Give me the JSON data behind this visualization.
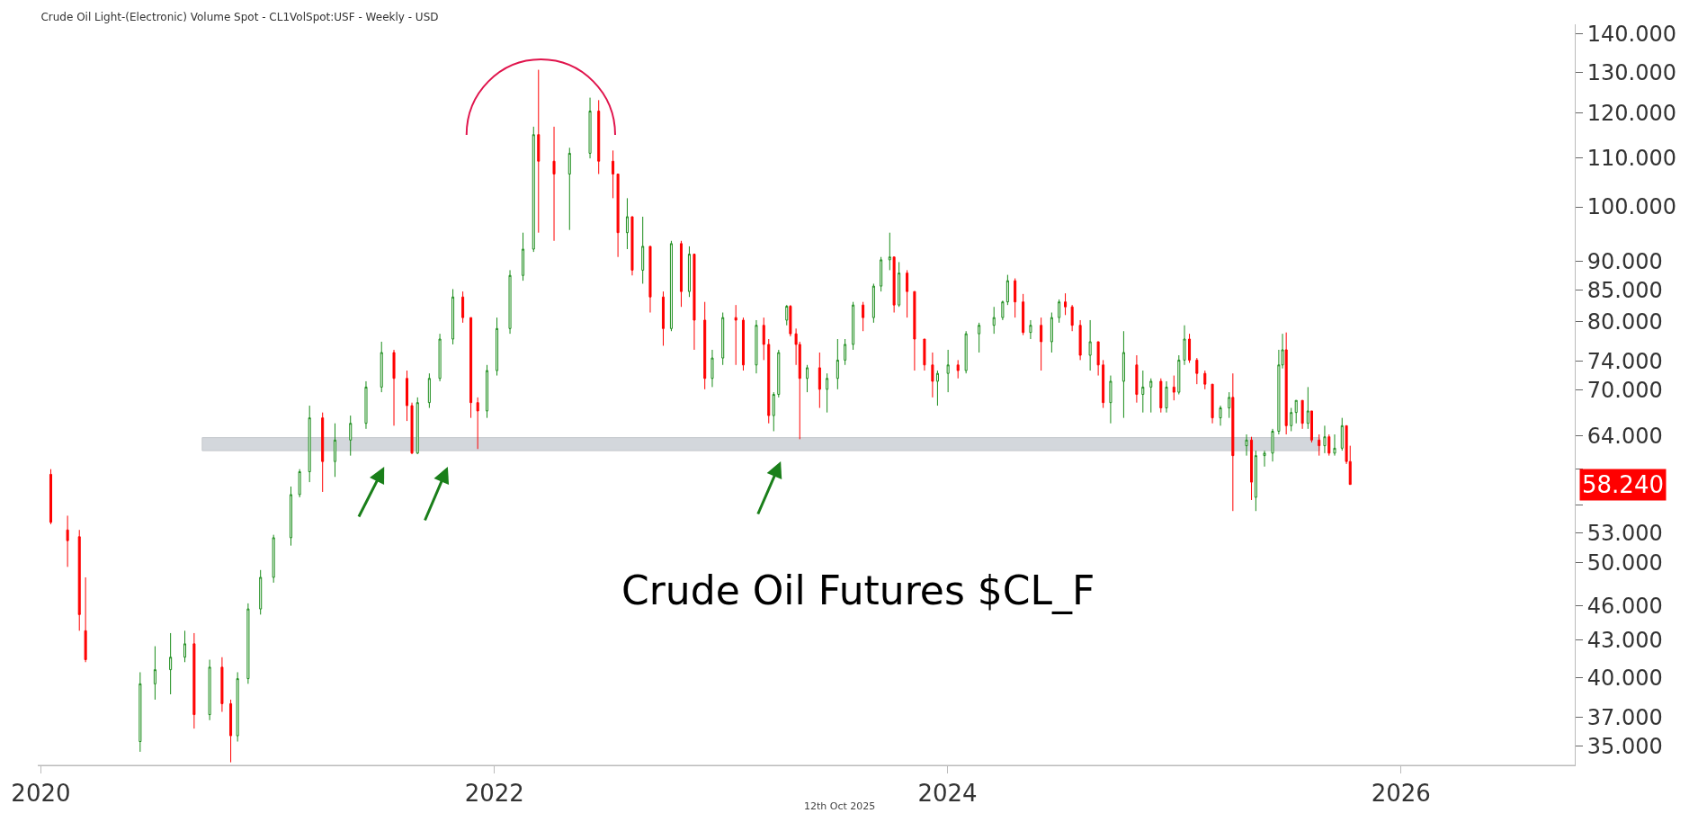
{
  "chart_data": {
    "type": "candlestick",
    "title": "Crude Oil Light-(Electronic) Volume Spot - CL1VolSpot:USF - Weekly - USD",
    "x": [
      "2020-01-17",
      "2020-02-13",
      "2020-03-03",
      "2020-03-13",
      "2020-06-09",
      "2020-07-03",
      "2020-07-28",
      "2020-08-20",
      "2020-09-04",
      "2020-09-29",
      "2020-10-19",
      "2020-11-02",
      "2020-11-13",
      "2020-11-30",
      "2020-12-20",
      "2021-01-10",
      "2021-02-07",
      "2021-02-21",
      "2021-03-09",
      "2021-03-30",
      "2021-04-19",
      "2021-05-14",
      "2021-06-08",
      "2021-07-03",
      "2021-07-23",
      "2021-08-13",
      "2021-08-21",
      "2021-08-30",
      "2021-09-18",
      "2021-10-05",
      "2021-10-26",
      "2021-11-11",
      "2021-11-24",
      "2021-12-05",
      "2021-12-20",
      "2022-01-05",
      "2022-01-26",
      "2022-02-16",
      "2022-03-05",
      "2022-03-13",
      "2022-04-07",
      "2022-05-02",
      "2022-06-04",
      "2022-06-18",
      "2022-07-11",
      "2022-07-19",
      "2022-08-03",
      "2022-08-11",
      "2022-08-28",
      "2022-09-09",
      "2022-09-30",
      "2022-10-13",
      "2022-10-29",
      "2022-11-11",
      "2022-11-19",
      "2022-12-06",
      "2022-12-18",
      "2023-01-04",
      "2023-01-25",
      "2023-02-06",
      "2023-02-27",
      "2023-03-11",
      "2023-03-19",
      "2023-03-27",
      "2023-04-04",
      "2023-04-17",
      "2023-04-23",
      "2023-05-02",
      "2023-05-08",
      "2023-05-20",
      "2023-06-09",
      "2023-06-21",
      "2023-07-08",
      "2023-07-20",
      "2023-08-02",
      "2023-08-18",
      "2023-09-04",
      "2023-09-16",
      "2023-09-30",
      "2023-10-07",
      "2023-10-15",
      "2023-10-28",
      "2023-11-09",
      "2023-11-25",
      "2023-12-08",
      "2023-12-16",
      "2024-01-02",
      "2024-01-18",
      "2024-01-31",
      "2024-02-21",
      "2024-03-16",
      "2024-03-30",
      "2024-04-07",
      "2024-04-19",
      "2024-05-02",
      "2024-05-14",
      "2024-05-31",
      "2024-06-17",
      "2024-06-29",
      "2024-07-09",
      "2024-07-20",
      "2024-08-02",
      "2024-08-18",
      "2024-08-31",
      "2024-09-08",
      "2024-09-20",
      "2024-10-11",
      "2024-11-01",
      "2024-11-11",
      "2024-11-24",
      "2024-12-10",
      "2024-12-19",
      "2024-12-31",
      "2025-01-08",
      "2025-01-17",
      "2025-01-25",
      "2025-02-06",
      "2025-02-19",
      "2025-03-03",
      "2025-03-16",
      "2025-03-30",
      "2025-04-05",
      "2025-04-27",
      "2025-05-05",
      "2025-05-12",
      "2025-05-26",
      "2025-06-08",
      "2025-06-18",
      "2025-06-24",
      "2025-06-30",
      "2025-07-08",
      "2025-07-16",
      "2025-07-26",
      "2025-08-04",
      "2025-08-10",
      "2025-08-22",
      "2025-08-31",
      "2025-09-07",
      "2025-09-16",
      "2025-09-28",
      "2025-10-05",
      "2025-10-11"
    ],
    "ohlc": [
      [
        59.4,
        60.0,
        53.9,
        54.1
      ],
      [
        53.3,
        54.8,
        49.6,
        52.2
      ],
      [
        52.6,
        53.3,
        43.8,
        45.2
      ],
      [
        43.8,
        48.6,
        41.2,
        41.4
      ],
      [
        35.3,
        40.4,
        34.6,
        39.5
      ],
      [
        39.5,
        42.5,
        38.3,
        40.6
      ],
      [
        40.6,
        43.6,
        38.7,
        41.6
      ],
      [
        41.6,
        43.8,
        41.2,
        42.7
      ],
      [
        42.7,
        43.6,
        36.2,
        37.2
      ],
      [
        37.2,
        41.4,
        36.8,
        40.8
      ],
      [
        40.8,
        41.6,
        37.4,
        38.0
      ],
      [
        38.0,
        38.3,
        33.9,
        35.7
      ],
      [
        35.7,
        40.4,
        35.3,
        39.9
      ],
      [
        39.9,
        46.2,
        39.5,
        45.7
      ],
      [
        45.7,
        49.3,
        45.2,
        48.6
      ],
      [
        48.6,
        52.8,
        48.1,
        52.5
      ],
      [
        52.5,
        58.0,
        51.7,
        57.1
      ],
      [
        57.1,
        60.0,
        56.8,
        59.7
      ],
      [
        59.7,
        67.9,
        58.5,
        66.3
      ],
      [
        66.3,
        67.0,
        57.4,
        60.9
      ],
      [
        60.9,
        65.6,
        59.1,
        63.5
      ],
      [
        63.5,
        66.6,
        61.6,
        65.6
      ],
      [
        65.6,
        71.2,
        64.9,
        70.4
      ],
      [
        70.4,
        76.9,
        69.7,
        75.3
      ],
      [
        75.3,
        75.7,
        65.3,
        71.6
      ],
      [
        71.6,
        72.7,
        65.9,
        67.9
      ],
      [
        67.9,
        68.3,
        61.8,
        61.9
      ],
      [
        61.9,
        69.0,
        61.8,
        68.3
      ],
      [
        68.3,
        72.3,
        67.6,
        71.6
      ],
      [
        71.6,
        78.1,
        71.2,
        77.3
      ],
      [
        77.3,
        85.2,
        76.5,
        83.9
      ],
      [
        83.9,
        84.8,
        79.8,
        80.6
      ],
      [
        80.6,
        80.6,
        66.3,
        68.3
      ],
      [
        68.3,
        69.0,
        62.4,
        67.2
      ],
      [
        67.2,
        73.5,
        66.3,
        72.7
      ],
      [
        72.7,
        80.6,
        72.0,
        78.9
      ],
      [
        78.9,
        88.4,
        78.1,
        87.5
      ],
      [
        87.5,
        95.1,
        86.6,
        92.1
      ],
      [
        92.1,
        116.9,
        91.6,
        115.1
      ],
      [
        115.1,
        130.6,
        95.1,
        109.3
      ],
      [
        109.3,
        116.9,
        93.6,
        106.6
      ],
      [
        106.6,
        112.2,
        95.6,
        111.0
      ],
      [
        111.0,
        123.7,
        109.9,
        120.5
      ],
      [
        120.5,
        123.1,
        106.6,
        109.3
      ],
      [
        109.3,
        111.6,
        101.7,
        106.6
      ],
      [
        106.6,
        106.6,
        90.7,
        95.1
      ],
      [
        95.1,
        101.7,
        92.1,
        98.1
      ],
      [
        98.1,
        98.1,
        87.5,
        88.4
      ],
      [
        88.4,
        98.1,
        86.1,
        92.6
      ],
      [
        92.6,
        92.6,
        81.4,
        83.9
      ],
      [
        83.9,
        84.8,
        76.3,
        78.9
      ],
      [
        78.9,
        93.6,
        78.5,
        93.1
      ],
      [
        93.1,
        93.6,
        82.3,
        84.8
      ],
      [
        84.8,
        92.6,
        83.9,
        91.2
      ],
      [
        91.2,
        91.2,
        75.7,
        80.2
      ],
      [
        80.2,
        83.1,
        70.1,
        71.6
      ],
      [
        71.6,
        75.7,
        70.4,
        74.5
      ],
      [
        74.5,
        81.4,
        73.5,
        80.6
      ],
      [
        80.6,
        82.6,
        73.5,
        80.2
      ],
      [
        80.2,
        80.6,
        72.7,
        73.5
      ],
      [
        73.5,
        80.2,
        72.3,
        79.4
      ],
      [
        79.4,
        80.6,
        74.2,
        76.5
      ],
      [
        76.5,
        77.3,
        65.6,
        66.6
      ],
      [
        66.6,
        69.7,
        64.6,
        69.4
      ],
      [
        69.4,
        75.7,
        69.0,
        75.3
      ],
      [
        80.2,
        82.6,
        79.4,
        82.4
      ],
      [
        82.4,
        82.6,
        77.7,
        78.1
      ],
      [
        78.1,
        78.9,
        73.5,
        76.5
      ],
      [
        76.5,
        76.9,
        63.6,
        71.6
      ],
      [
        71.6,
        73.5,
        69.7,
        73.1
      ],
      [
        73.1,
        75.3,
        67.6,
        70.1
      ],
      [
        70.1,
        72.3,
        67.0,
        71.6
      ],
      [
        71.6,
        77.3,
        70.1,
        74.2
      ],
      [
        74.2,
        77.3,
        73.5,
        76.5
      ],
      [
        76.5,
        83.1,
        75.7,
        82.6
      ],
      [
        82.6,
        83.1,
        78.5,
        80.6
      ],
      [
        80.6,
        86.1,
        79.8,
        85.7
      ],
      [
        85.7,
        90.7,
        84.8,
        90.2
      ],
      [
        90.2,
        95.1,
        88.4,
        90.7
      ],
      [
        90.7,
        90.7,
        81.4,
        82.6
      ],
      [
        82.6,
        89.8,
        82.3,
        87.9
      ],
      [
        87.9,
        88.4,
        80.6,
        84.8
      ],
      [
        84.8,
        84.8,
        72.7,
        77.3
      ],
      [
        77.3,
        77.3,
        72.7,
        73.5
      ],
      [
        73.5,
        75.3,
        69.0,
        71.2
      ],
      [
        71.2,
        72.7,
        67.9,
        72.3
      ],
      [
        72.3,
        75.7,
        69.7,
        73.5
      ],
      [
        73.5,
        74.2,
        71.6,
        72.7
      ],
      [
        72.7,
        78.5,
        72.3,
        78.1
      ],
      [
        78.1,
        79.8,
        75.3,
        79.4
      ],
      [
        79.4,
        82.3,
        78.1,
        80.6
      ],
      [
        80.6,
        83.3,
        80.2,
        83.1
      ],
      [
        83.1,
        87.6,
        82.6,
        86.6
      ],
      [
        86.6,
        87.0,
        80.6,
        83.1
      ],
      [
        83.1,
        84.4,
        77.9,
        78.3
      ],
      [
        78.3,
        80.2,
        77.3,
        79.4
      ],
      [
        79.4,
        80.6,
        72.7,
        76.9
      ],
      [
        76.9,
        81.4,
        75.3,
        80.6
      ],
      [
        80.6,
        83.5,
        79.8,
        83.1
      ],
      [
        83.1,
        84.5,
        81.0,
        82.3
      ],
      [
        82.3,
        82.6,
        78.5,
        79.4
      ],
      [
        79.4,
        80.2,
        74.2,
        74.9
      ],
      [
        74.9,
        80.2,
        72.7,
        76.9
      ],
      [
        76.9,
        76.9,
        72.0,
        73.5
      ],
      [
        73.5,
        74.2,
        67.6,
        68.3
      ],
      [
        68.3,
        72.0,
        65.6,
        71.2
      ],
      [
        71.2,
        78.5,
        66.3,
        75.3
      ],
      [
        73.5,
        74.9,
        68.3,
        69.4
      ],
      [
        69.4,
        72.7,
        67.0,
        70.4
      ],
      [
        70.4,
        71.6,
        67.0,
        71.2
      ],
      [
        71.2,
        71.6,
        67.0,
        67.6
      ],
      [
        67.6,
        71.2,
        67.0,
        70.4
      ],
      [
        70.4,
        72.0,
        68.6,
        69.7
      ],
      [
        69.7,
        74.9,
        69.4,
        74.2
      ],
      [
        74.2,
        79.4,
        73.5,
        77.3
      ],
      [
        77.3,
        78.1,
        73.8,
        74.2
      ],
      [
        74.2,
        74.5,
        70.8,
        72.3
      ],
      [
        72.3,
        72.7,
        70.1,
        70.8
      ],
      [
        70.8,
        70.8,
        65.6,
        66.3
      ],
      [
        66.3,
        67.9,
        65.3,
        67.6
      ],
      [
        67.6,
        69.7,
        66.3,
        69.0
      ],
      [
        69.0,
        72.3,
        55.3,
        61.6
      ],
      [
        62.8,
        64.2,
        61.6,
        63.5
      ],
      [
        63.5,
        63.9,
        56.5,
        58.5
      ],
      [
        56.8,
        62.2,
        55.3,
        61.6
      ],
      [
        61.6,
        62.2,
        60.3,
        61.9
      ],
      [
        61.9,
        64.9,
        60.9,
        64.6
      ],
      [
        64.6,
        75.7,
        64.2,
        73.5
      ],
      [
        73.5,
        78.1,
        73.0,
        75.7
      ],
      [
        75.7,
        78.3,
        64.2,
        65.3
      ],
      [
        65.3,
        67.6,
        64.6,
        67.0
      ],
      [
        67.0,
        68.6,
        65.6,
        68.6
      ],
      [
        68.6,
        68.6,
        64.9,
        65.6
      ],
      [
        65.6,
        70.4,
        64.9,
        67.2
      ],
      [
        67.2,
        67.2,
        63.2,
        63.5
      ],
      [
        63.5,
        64.2,
        61.6,
        62.8
      ],
      [
        62.8,
        65.3,
        61.9,
        63.9
      ],
      [
        63.9,
        64.2,
        61.6,
        61.9
      ],
      [
        61.9,
        64.2,
        61.6,
        62.5
      ],
      [
        62.5,
        66.3,
        62.2,
        65.3
      ],
      [
        65.3,
        65.3,
        60.6,
        60.9
      ],
      [
        60.9,
        62.8,
        58.24,
        58.24
      ]
    ],
    "log": true,
    "xlim": [
      "2019-12-27",
      "2026-10-08"
    ],
    "xticks": [
      {
        "value": "2020-01-01",
        "label": "2020"
      },
      {
        "value": "2022-01-01",
        "label": "2022"
      },
      {
        "value": "2024-01-01",
        "label": "2024"
      },
      {
        "value": "2026-01-01",
        "label": "2026"
      }
    ],
    "ylim": [
      33.7,
      142.7
    ],
    "yticks": [
      {
        "value": 35,
        "label": "35.000"
      },
      {
        "value": 37,
        "label": "37.000"
      },
      {
        "value": 40,
        "label": "40.000"
      },
      {
        "value": 43,
        "label": "43.000"
      },
      {
        "value": 46,
        "label": "46.000"
      },
      {
        "value": 50,
        "label": "50.000"
      },
      {
        "value": 53,
        "label": "53.000"
      },
      {
        "value": 56,
        "label": null
      },
      {
        "value": 60,
        "label": null
      },
      {
        "value": 64,
        "label": "64.000"
      },
      {
        "value": 70,
        "label": "70.000"
      },
      {
        "value": 74,
        "label": "74.000"
      },
      {
        "value": 80,
        "label": "80.000"
      },
      {
        "value": 85,
        "label": "85.000"
      },
      {
        "value": 90,
        "label": "90.000"
      },
      {
        "value": 100,
        "label": "100.000"
      },
      {
        "value": 110,
        "label": "110.000"
      },
      {
        "value": 120,
        "label": "120.000"
      },
      {
        "value": 130,
        "label": "130.000"
      },
      {
        "value": 140,
        "label": "140.000"
      }
    ],
    "bands": [
      {
        "axis": "y",
        "from": 62.2,
        "to": 63.8,
        "color": "#d3d7dc"
      }
    ],
    "annotations": [
      "Crude Oil Futures $CL_F",
      "12th Oct 2025",
      "58.240"
    ],
    "grid": false
  }
}
